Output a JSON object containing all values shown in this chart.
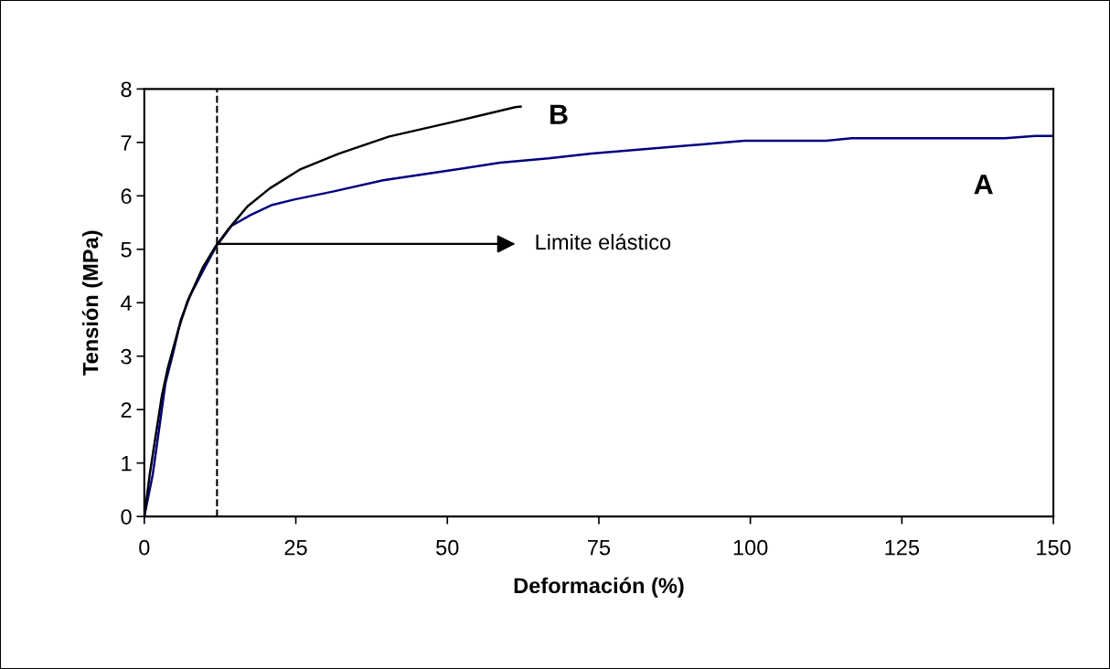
{
  "chart_data": {
    "type": "line",
    "xlabel": "Deformación (%)",
    "ylabel": "Tensión (MPa)",
    "xlim": [
      0,
      150
    ],
    "xticks": [
      0,
      25,
      50,
      75,
      100,
      125,
      150
    ],
    "ylim": [
      0,
      8
    ],
    "yticks": [
      0,
      1,
      2,
      3,
      4,
      5,
      6,
      7,
      8
    ],
    "grid": false,
    "series": [
      {
        "name": "A",
        "color": "#000080",
        "x": [
          0,
          1.4,
          2.4,
          3.5,
          4.8,
          6.0,
          7.6,
          9.7,
          11.9,
          14.4,
          17.5,
          21.1,
          24.7,
          31.1,
          39.4,
          48.3,
          58.7,
          66.7,
          73.8,
          99,
          112.5,
          116.7,
          142,
          147,
          150
        ],
        "values": [
          0,
          0.79,
          1.6,
          2.5,
          3.08,
          3.67,
          4.14,
          4.6,
          5.06,
          5.44,
          5.64,
          5.83,
          5.93,
          6.08,
          6.29,
          6.44,
          6.62,
          6.7,
          6.79,
          7.03,
          7.03,
          7.08,
          7.08,
          7.12,
          7.12
        ]
      },
      {
        "name": "B",
        "color": "#000000",
        "x": [
          0,
          0.9,
          2.0,
          2.9,
          3.9,
          5.6,
          7.1,
          9.7,
          11.8,
          13.9,
          17.0,
          20.7,
          25.8,
          32.1,
          40.4,
          50.8,
          61.2,
          62.1
        ],
        "values": [
          0,
          0.79,
          1.6,
          2.26,
          2.79,
          3.49,
          4.02,
          4.67,
          5.06,
          5.38,
          5.8,
          6.14,
          6.5,
          6.79,
          7.11,
          7.38,
          7.66,
          7.67
        ]
      }
    ],
    "ref_lines": [
      {
        "axis": "x",
        "value": 12,
        "line_style": "dashed",
        "color": "#000000"
      }
    ],
    "annotations": [
      {
        "text": "Limite elástico",
        "x": 12,
        "y": 5.1
      }
    ]
  }
}
